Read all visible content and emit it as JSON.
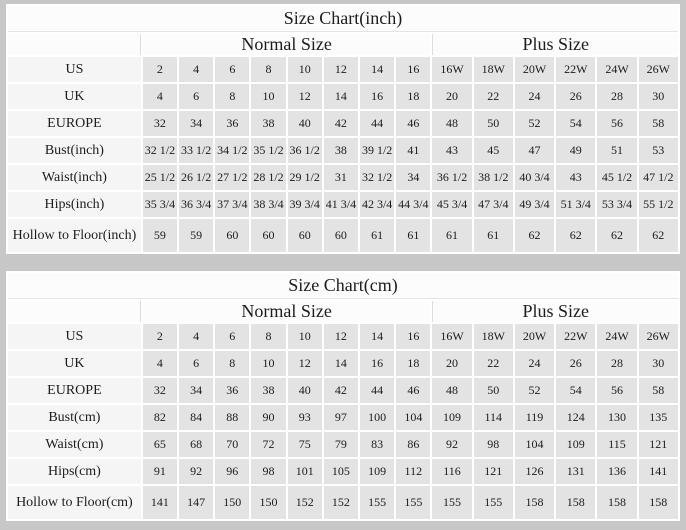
{
  "colors": {
    "page_background": "#c7c7c7",
    "table_gutter": "#ffffff",
    "header_row_bg": "#fcfcfc",
    "label_cell_bg": "#f5f5f5",
    "data_cell_bg": "#e3e3e3",
    "text": "#1c1c1c"
  },
  "tables": [
    {
      "title": "Size Chart(inch)",
      "group_headers": {
        "normal": "Normal Size",
        "plus": "Plus Size"
      },
      "normal_col_count": 8,
      "plus_col_count": 6,
      "rows": [
        {
          "label": "US",
          "values": [
            "2",
            "4",
            "6",
            "8",
            "10",
            "12",
            "14",
            "16",
            "16W",
            "18W",
            "20W",
            "22W",
            "24W",
            "26W"
          ]
        },
        {
          "label": "UK",
          "values": [
            "4",
            "6",
            "8",
            "10",
            "12",
            "14",
            "16",
            "18",
            "20",
            "22",
            "24",
            "26",
            "28",
            "30"
          ]
        },
        {
          "label": "EUROPE",
          "values": [
            "32",
            "34",
            "36",
            "38",
            "40",
            "42",
            "44",
            "46",
            "48",
            "50",
            "52",
            "54",
            "56",
            "58"
          ]
        },
        {
          "label": "Bust(inch)",
          "values": [
            "32 1/2",
            "33 1/2",
            "34 1/2",
            "35 1/2",
            "36 1/2",
            "38",
            "39 1/2",
            "41",
            "43",
            "45",
            "47",
            "49",
            "51",
            "53"
          ]
        },
        {
          "label": "Waist(inch)",
          "values": [
            "25 1/2",
            "26 1/2",
            "27 1/2",
            "28 1/2",
            "29 1/2",
            "31",
            "32 1/2",
            "34",
            "36 1/2",
            "38 1/2",
            "40 3/4",
            "43",
            "45 1/2",
            "47 1/2"
          ]
        },
        {
          "label": "Hips(inch)",
          "values": [
            "35 3/4",
            "36 3/4",
            "37 3/4",
            "38 3/4",
            "39 3/4",
            "41 3/4",
            "42 3/4",
            "44 3/4",
            "45 3/4",
            "47 3/4",
            "49 3/4",
            "51 3/4",
            "53 3/4",
            "55 1/2"
          ]
        },
        {
          "label": "Hollow to Floor(inch)",
          "values": [
            "59",
            "59",
            "60",
            "60",
            "60",
            "60",
            "61",
            "61",
            "61",
            "61",
            "62",
            "62",
            "62",
            "62"
          ]
        }
      ]
    },
    {
      "title": "Size Chart(cm)",
      "group_headers": {
        "normal": "Normal Size",
        "plus": "Plus Size"
      },
      "normal_col_count": 8,
      "plus_col_count": 6,
      "rows": [
        {
          "label": "US",
          "values": [
            "2",
            "4",
            "6",
            "8",
            "10",
            "12",
            "14",
            "16",
            "16W",
            "18W",
            "20W",
            "22W",
            "24W",
            "26W"
          ]
        },
        {
          "label": "UK",
          "values": [
            "4",
            "6",
            "8",
            "10",
            "12",
            "14",
            "16",
            "18",
            "20",
            "22",
            "24",
            "26",
            "28",
            "30"
          ]
        },
        {
          "label": "EUROPE",
          "values": [
            "32",
            "34",
            "36",
            "38",
            "40",
            "42",
            "44",
            "46",
            "48",
            "50",
            "52",
            "54",
            "56",
            "58"
          ]
        },
        {
          "label": "Bust(cm)",
          "values": [
            "82",
            "84",
            "88",
            "90",
            "93",
            "97",
            "100",
            "104",
            "109",
            "114",
            "119",
            "124",
            "130",
            "135"
          ]
        },
        {
          "label": "Waist(cm)",
          "values": [
            "65",
            "68",
            "70",
            "72",
            "75",
            "79",
            "83",
            "86",
            "92",
            "98",
            "104",
            "109",
            "115",
            "121"
          ]
        },
        {
          "label": "Hips(cm)",
          "values": [
            "91",
            "92",
            "96",
            "98",
            "101",
            "105",
            "109",
            "112",
            "116",
            "121",
            "126",
            "131",
            "136",
            "141"
          ]
        },
        {
          "label": "Hollow to Floor(cm)",
          "values": [
            "141",
            "147",
            "150",
            "150",
            "152",
            "152",
            "155",
            "155",
            "155",
            "155",
            "158",
            "158",
            "158",
            "158"
          ]
        }
      ]
    }
  ]
}
